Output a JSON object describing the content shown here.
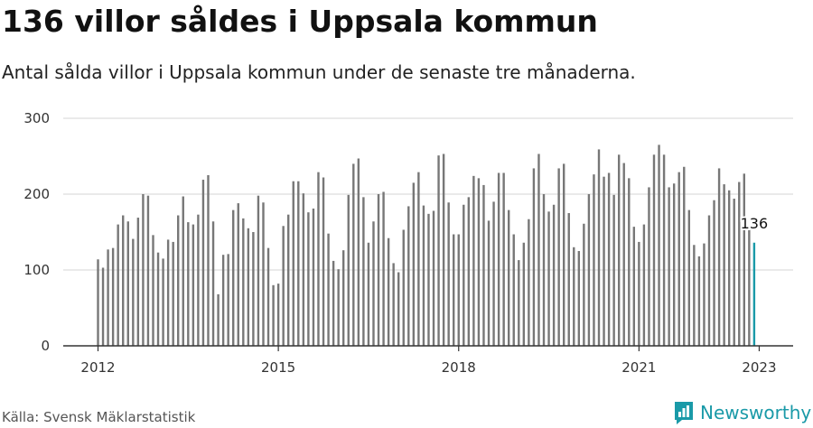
{
  "header": {
    "title": "136 villor såldes i Uppsala kommun",
    "subtitle": "Antal sålda villor i Uppsala kommun under de senaste tre månaderna."
  },
  "footer": {
    "source": "Källa: Svensk Mäklarstatistik",
    "brand": "Newsworthy",
    "brand_icon": "newsworthy-logo-icon"
  },
  "colors": {
    "bar": "#777777",
    "highlight": "#1a9aa8",
    "grid": "#dddddd",
    "axis": "#333333"
  },
  "chart_data": {
    "type": "bar",
    "title": "",
    "xlabel": "",
    "ylabel": "",
    "x_start": "2012-01",
    "x_ticks": [
      "2012",
      "2015",
      "2018",
      "2021",
      "2023"
    ],
    "y_ticks": [
      0,
      100,
      200,
      300
    ],
    "ylim": [
      0,
      300
    ],
    "grid": true,
    "highlight_label": "136",
    "values": [
      114,
      103,
      127,
      129,
      160,
      172,
      164,
      141,
      169,
      200,
      198,
      146,
      123,
      115,
      140,
      137,
      172,
      197,
      163,
      160,
      173,
      219,
      225,
      164,
      68,
      120,
      121,
      179,
      188,
      168,
      155,
      150,
      198,
      189,
      129,
      80,
      82,
      158,
      173,
      217,
      217,
      201,
      176,
      181,
      229,
      222,
      148,
      112,
      101,
      126,
      199,
      240,
      247,
      196,
      136,
      164,
      200,
      203,
      142,
      109,
      97,
      153,
      184,
      215,
      229,
      185,
      174,
      178,
      251,
      253,
      189,
      147,
      147,
      186,
      196,
      224,
      221,
      212,
      165,
      190,
      228,
      228,
      179,
      147,
      113,
      136,
      167,
      234,
      253,
      200,
      177,
      186,
      234,
      240,
      175,
      130,
      125,
      161,
      200,
      226,
      259,
      223,
      228,
      199,
      252,
      241,
      221,
      157,
      137,
      160,
      209,
      252,
      265,
      252,
      209,
      214,
      229,
      236,
      179,
      133,
      118,
      135,
      172,
      192,
      234,
      213,
      205,
      194,
      216,
      227,
      154,
      136
    ]
  }
}
